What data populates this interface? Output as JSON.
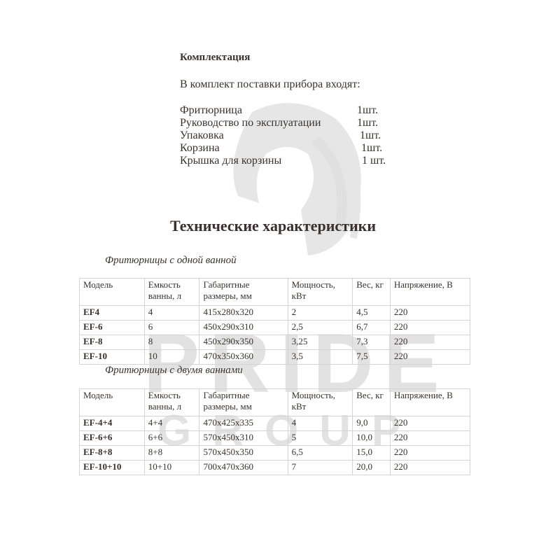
{
  "watermark": {
    "line1": "PRIDE",
    "line2": "GROUP"
  },
  "package": {
    "title": "Комплектация",
    "intro": "В комплект поставки прибора входят:",
    "items": [
      {
        "name": "Фритюрница",
        "qty": "1шт."
      },
      {
        "name": "Руководство по эксплуатации",
        "qty": "1шт."
      },
      {
        "name": "Упаковка",
        "qty": "1шт."
      },
      {
        "name": "Корзина",
        "qty": "1шт."
      },
      {
        "name": "Крышка для корзины",
        "qty": "1 шт."
      }
    ]
  },
  "specs_title": "Технические характеристики",
  "headers": [
    "Модель",
    "Емкость ванны, л",
    "Габаритные размеры, мм",
    "Мощность, кВт",
    "Вес, кг",
    "Напряжение, В"
  ],
  "single": {
    "title": "Фритюрницы с одной ванной",
    "rows": [
      [
        "EF4",
        "4",
        "415x280x320",
        "2",
        "4,5",
        "220"
      ],
      [
        "EF-6",
        "6",
        "450x290x310",
        "2,5",
        "6,7",
        "220"
      ],
      [
        "EF-8",
        "8",
        "450x290x350",
        "3,25",
        "7,3",
        "220"
      ],
      [
        "EF-10",
        "10",
        "470x350x360",
        "3,5",
        "7,5",
        "220"
      ]
    ]
  },
  "double": {
    "title": "Фритюрницы с двумя ваннами",
    "rows": [
      [
        "EF-4+4",
        "4+4",
        "470x425x335",
        "4",
        "9,0",
        "220"
      ],
      [
        "EF-6+6",
        "6+6",
        "570x450x310",
        "5",
        "10,0",
        "220"
      ],
      [
        "EF-8+8",
        "8+8",
        "570x450x350",
        "6,5",
        "15,0",
        "220"
      ],
      [
        "EF-10+10",
        "10+10",
        "700x470x360",
        "7",
        "20,0",
        "220"
      ]
    ]
  }
}
